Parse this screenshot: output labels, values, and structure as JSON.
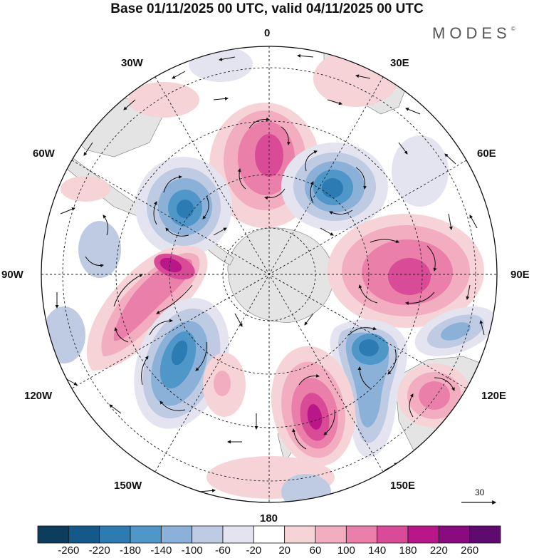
{
  "title": "Base 01/11/2025 00 UTC, valid 04/11/2025 00 UTC",
  "brand": "MODES",
  "brand_mark": "©",
  "longitude_labels": {
    "lon_0": "0",
    "lon_30e": "30E",
    "lon_60e": "60E",
    "lon_90e": "90E",
    "lon_120e": "120E",
    "lon_150e": "150E",
    "lon_180": "180",
    "lon_150w": "150W",
    "lon_120w": "120W",
    "lon_90w": "90W",
    "lon_60w": "60W",
    "lon_30w": "30W"
  },
  "reference_vector": "30",
  "colorbar": {
    "labels": [
      "-260",
      "-220",
      "-180",
      "-140",
      "-100",
      "-60",
      "-20",
      "20",
      "60",
      "100",
      "140",
      "180",
      "220",
      "260"
    ],
    "colors": [
      "#0d3c5c",
      "#14598a",
      "#2d7bb3",
      "#4f97c8",
      "#8cb1d8",
      "#bfcbe3",
      "#e4e4f0",
      "#ffffff",
      "#f6d3d6",
      "#f2aec0",
      "#ea80a9",
      "#d94b96",
      "#b9168a",
      "#8a0a7f",
      "#5e0a6e"
    ]
  },
  "colors": {
    "land": "#e6e6e6",
    "neg_strong": "#2d7bb3",
    "pos_strong": "#c42a92"
  },
  "anomaly_centers": [
    {
      "name": "positive-anomaly-near-0",
      "sign": "positive",
      "peak": "180"
    },
    {
      "name": "negative-anomaly-near-40e",
      "sign": "negative",
      "peak": "-220"
    },
    {
      "name": "positive-anomaly-near-90e",
      "sign": "positive",
      "peak": "180"
    },
    {
      "name": "negative-anomaly-near-120e",
      "sign": "negative",
      "peak": "-180"
    },
    {
      "name": "positive-anomaly-near-160e",
      "sign": "positive",
      "peak": "220"
    },
    {
      "name": "negative-anomaly-near-140w",
      "sign": "negative",
      "peak": "-180"
    },
    {
      "name": "positive-anomaly-near-90w",
      "sign": "positive",
      "peak": "220"
    },
    {
      "name": "negative-anomaly-near-60w",
      "sign": "negative",
      "peak": "-180"
    }
  ]
}
